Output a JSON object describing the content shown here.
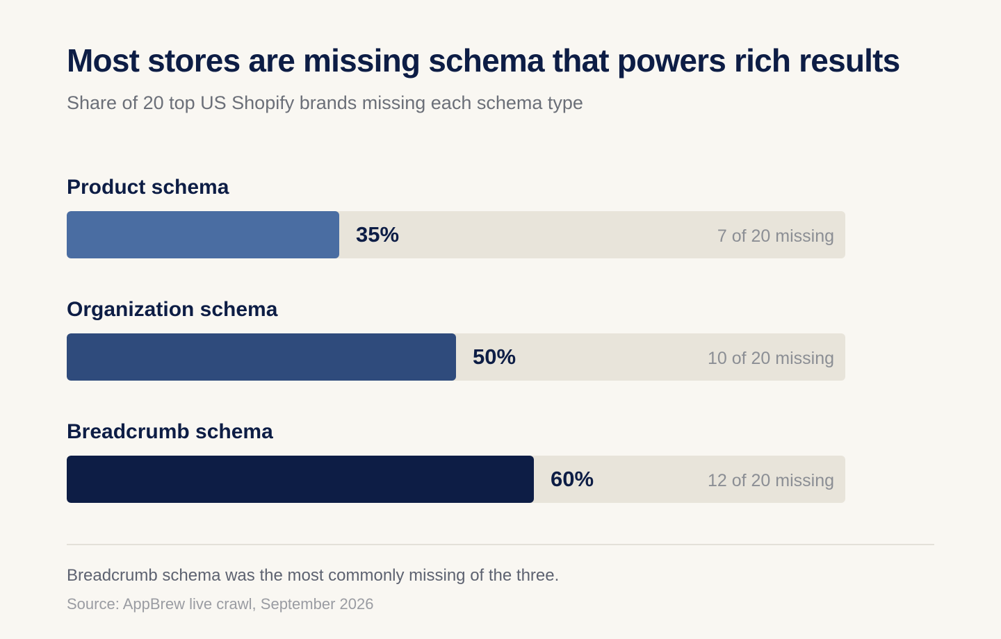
{
  "title": "Most stores are missing schema that powers rich results",
  "subtitle": "Share of 20 top US Shopify brands missing each schema type",
  "note": "Breadcrumb schema was the most commonly missing of the three.",
  "source": "Source: AppBrew live crawl, September 2026",
  "chart_data": {
    "type": "bar",
    "orientation": "horizontal",
    "categories": [
      "Product schema",
      "Organization schema",
      "Breadcrumb schema"
    ],
    "values": [
      35,
      50,
      60
    ],
    "value_labels": [
      "35%",
      "50%",
      "60%"
    ],
    "count_labels": [
      "7 of 20 missing",
      "10 of 20 missing",
      "12 of 20 missing"
    ],
    "colors": [
      "#4a6da2",
      "#2f4b7c",
      "#0d1d45"
    ],
    "track_color": "#e8e4da",
    "xlim": [
      0,
      100
    ],
    "title": "Most stores are missing schema that powers rich results",
    "subtitle": "Share of 20 top US Shopify brands missing each schema type",
    "grid": false,
    "legend": "none"
  }
}
